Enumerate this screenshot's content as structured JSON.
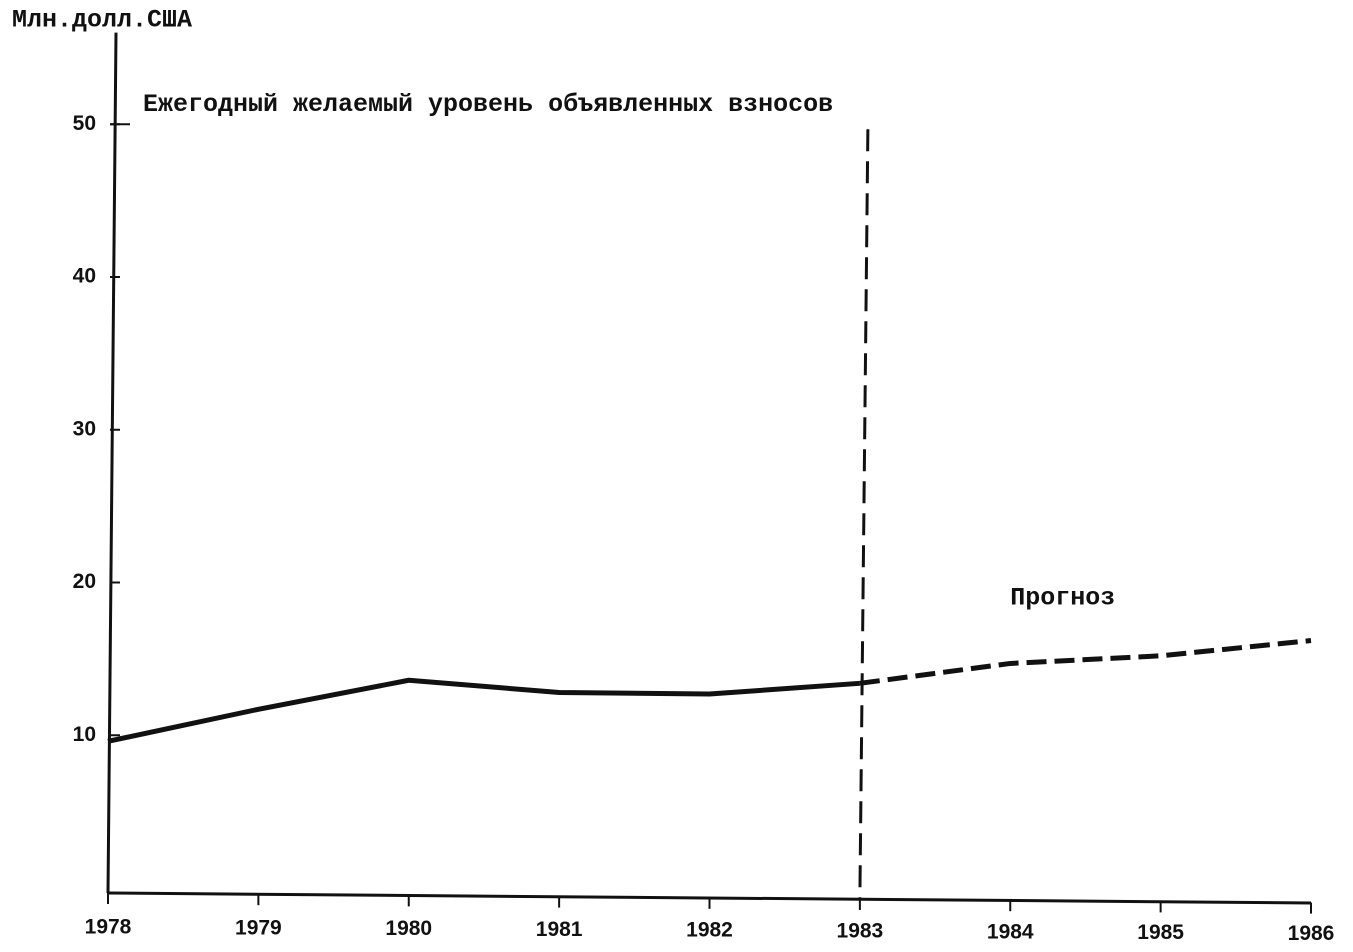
{
  "chart_data": {
    "type": "line",
    "y_axis_label": "Млн.долл.США",
    "annotation": {
      "text": "Ежегодный желаемый уровень объявленных взносов",
      "y": 50
    },
    "divider_x": 1983,
    "x": [
      1978,
      1979,
      1980,
      1981,
      1982,
      1983,
      1984,
      1985,
      1986
    ],
    "series": [
      {
        "color": "#111111",
        "style": "solid",
        "values": [
          9.6,
          11.7,
          13.6,
          12.8,
          12.7,
          13.4,
          null,
          null,
          null
        ]
      },
      {
        "name": "Прогноз",
        "color": "#111111",
        "style": "dashed",
        "values": [
          null,
          null,
          null,
          null,
          null,
          13.4,
          14.7,
          15.2,
          16.2
        ]
      }
    ],
    "xlim": [
      1978,
      1986
    ],
    "xticks": [
      1978,
      1979,
      1980,
      1981,
      1982,
      1983,
      1984,
      1985,
      1986
    ],
    "ylim": [
      0,
      56
    ],
    "yticks": [
      10,
      20,
      30,
      40,
      50
    ],
    "grid": false
  }
}
